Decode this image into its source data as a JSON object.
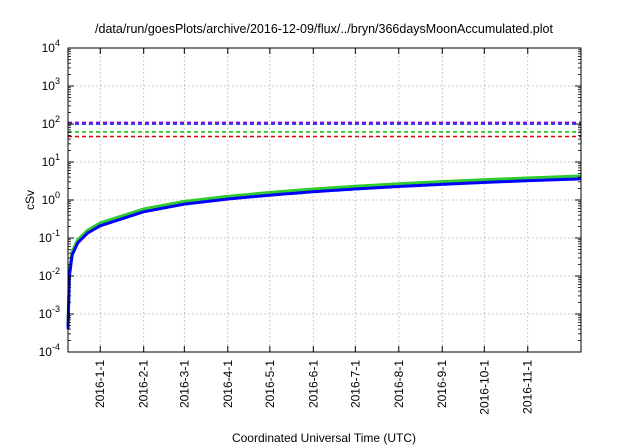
{
  "chart_data": {
    "type": "line",
    "title": "/data/run/goesPlots/archive/2016-12-09/flux/../bryn/366daysMoonAccumulated.plot",
    "xlabel": "Coordinated Universal Time (UTC)",
    "ylabel": "cSv",
    "yscale": "log",
    "ylim": [
      0.0001,
      10000
    ],
    "xlim": [
      "2015-12-09",
      "2016-12-09"
    ],
    "grid": true,
    "y_ticks": [
      {
        "value": 0.0001,
        "base": "10",
        "exp": "-4"
      },
      {
        "value": 0.001,
        "base": "10",
        "exp": "-3"
      },
      {
        "value": 0.01,
        "base": "10",
        "exp": "-2"
      },
      {
        "value": 0.1,
        "base": "10",
        "exp": "-1"
      },
      {
        "value": 1,
        "base": "10",
        "exp": "0"
      },
      {
        "value": 10,
        "base": "10",
        "exp": "1"
      },
      {
        "value": 100,
        "base": "10",
        "exp": "2"
      },
      {
        "value": 1000,
        "base": "10",
        "exp": "3"
      },
      {
        "value": 10000,
        "base": "10",
        "exp": "4"
      }
    ],
    "x_ticks": [
      "2016-1-1",
      "2016-2-1",
      "2016-3-1",
      "2016-4-1",
      "2016-5-1",
      "2016-6-1",
      "2016-7-1",
      "2016-8-1",
      "2016-9-1",
      "2016-10-1",
      "2016-11-1"
    ],
    "reference_lines": [
      {
        "value": 110,
        "color": "#9400d3"
      },
      {
        "value": 100,
        "color": "#0000ff"
      },
      {
        "value": 62,
        "color": "#00c000"
      },
      {
        "value": 47,
        "color": "#e00000"
      }
    ],
    "series": [
      {
        "color": "#2ecc2e",
        "x": [
          "2015-12-09",
          "2015-12-10",
          "2015-12-12",
          "2015-12-16",
          "2015-12-23",
          "2016-01-01",
          "2016-02-01",
          "2016-03-01",
          "2016-04-01",
          "2016-05-01",
          "2016-06-01",
          "2016-07-01",
          "2016-08-01",
          "2016-09-01",
          "2016-10-01",
          "2016-11-01",
          "2016-12-09"
        ],
        "values": [
          0.0005,
          0.013,
          0.045,
          0.09,
          0.16,
          0.25,
          0.58,
          0.92,
          1.25,
          1.58,
          1.95,
          2.3,
          2.68,
          3.05,
          3.42,
          3.8,
          4.3
        ]
      },
      {
        "color": "#0000ff",
        "x": [
          "2015-12-09",
          "2015-12-10",
          "2015-12-12",
          "2015-12-16",
          "2015-12-23",
          "2016-01-01",
          "2016-02-01",
          "2016-03-01",
          "2016-04-01",
          "2016-05-01",
          "2016-06-01",
          "2016-07-01",
          "2016-08-01",
          "2016-09-01",
          "2016-10-01",
          "2016-11-01",
          "2016-12-09"
        ],
        "values": [
          0.0004,
          0.01,
          0.036,
          0.075,
          0.135,
          0.21,
          0.49,
          0.78,
          1.06,
          1.34,
          1.65,
          1.95,
          2.27,
          2.58,
          2.9,
          3.22,
          3.6
        ]
      }
    ]
  }
}
